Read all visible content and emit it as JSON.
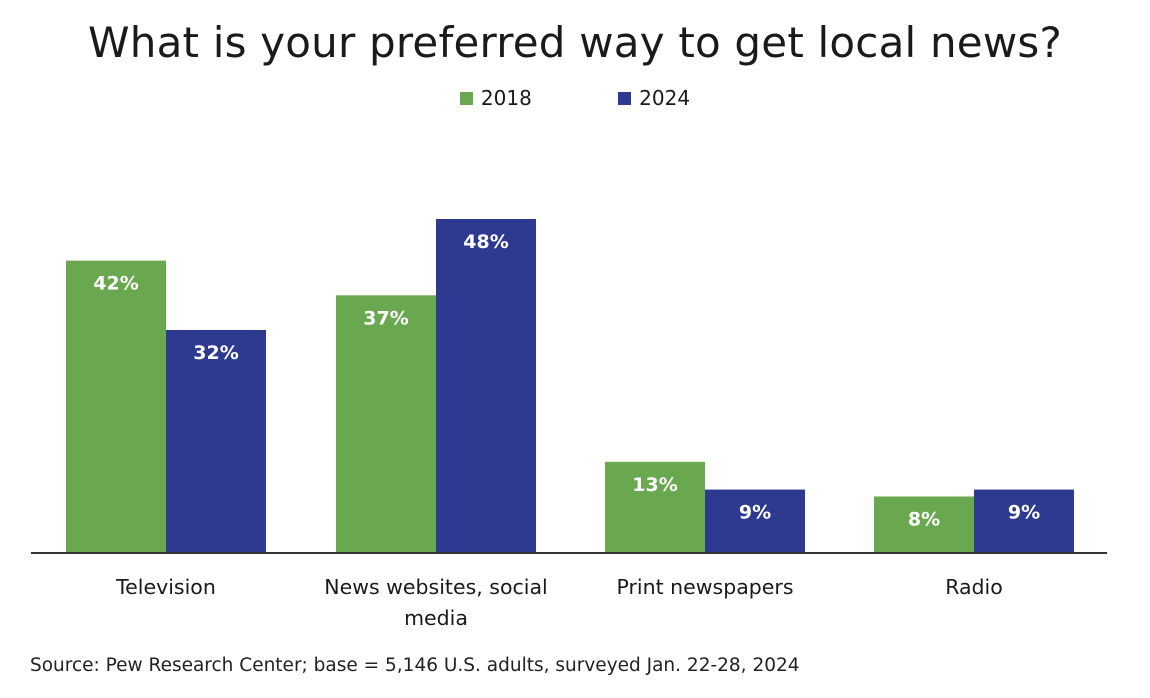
{
  "colors": {
    "s2018": "#6aa84f",
    "s2024": "#2e3a8f",
    "axis": "#333333",
    "label_in_bar": "#ffffff"
  },
  "chart_data": {
    "type": "bar",
    "title": "What is your preferred way to get local news?",
    "categories": [
      "Television",
      "News websites, social media",
      "Print newspapers",
      "Radio"
    ],
    "category_lines": [
      [
        "Television"
      ],
      [
        "News websites, social",
        "media"
      ],
      [
        "Print newspapers"
      ],
      [
        "Radio"
      ]
    ],
    "series": [
      {
        "name": "2018",
        "values": [
          42,
          37,
          13,
          8
        ],
        "labels": [
          "42%",
          "37%",
          "13%",
          "8%"
        ]
      },
      {
        "name": "2024",
        "values": [
          32,
          48,
          9,
          9
        ],
        "labels": [
          "32%",
          "48%",
          "9%",
          "9%"
        ]
      }
    ],
    "ylim": [
      0,
      48
    ],
    "grid": false,
    "legend_position": "top-center",
    "xlabel": "",
    "ylabel": ""
  },
  "source": "Source: Pew Research Center; base = 5,146 U.S. adults, surveyed Jan. 22-28, 2024"
}
